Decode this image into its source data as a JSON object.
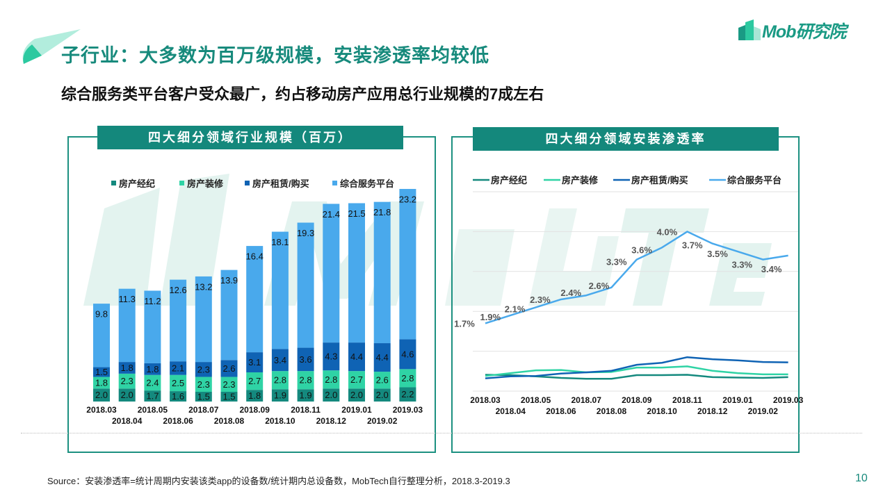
{
  "header": {
    "title": "子行业：大多数为百万级规模，安装渗透率均较低",
    "subtitle": "综合服务类平台客户受众最广，约占移动房产应用总行业规模的7成左右",
    "logo_text": "Mob研究院"
  },
  "watermark": "MobTech",
  "footer": {
    "source": "Source：安装渗透率=统计周期内安装该类app的设备数/统计期内总设备数，MobTech自行整理分析，2018.3-2019.3",
    "page_number": "10"
  },
  "colors": {
    "accent": "#14887c",
    "房产经纪": "#14897e",
    "房产装修": "#2fd3a5",
    "房产租赁/购买": "#0f63b4",
    "综合服务平台": "#49a9ec"
  },
  "chart_data": [
    {
      "type": "bar",
      "stacked": true,
      "title": "四大细分领域行业规模（百万）",
      "legend_position": "top",
      "grid": false,
      "categories": [
        "2018.03",
        "2018.04",
        "2018.05",
        "2018.06",
        "2018.07",
        "2018.08",
        "2018.09",
        "2018.10",
        "2018.11",
        "2018.12",
        "2019.01",
        "2019.02",
        "2019.03"
      ],
      "series": [
        {
          "name": "房产经纪",
          "values": [
            2.0,
            2.0,
            1.7,
            1.6,
            1.5,
            1.5,
            1.8,
            1.9,
            1.9,
            2.0,
            2.0,
            2.0,
            2.2
          ]
        },
        {
          "name": "房产装修",
          "values": [
            1.8,
            2.3,
            2.4,
            2.5,
            2.3,
            2.3,
            2.7,
            2.8,
            2.8,
            2.8,
            2.7,
            2.6,
            2.8
          ]
        },
        {
          "name": "房产租赁/购买",
          "values": [
            1.5,
            1.8,
            1.8,
            2.1,
            2.3,
            2.6,
            3.1,
            3.4,
            3.6,
            4.3,
            4.4,
            4.4,
            4.6
          ]
        },
        {
          "name": "综合服务平台",
          "values": [
            9.8,
            11.3,
            11.2,
            12.6,
            13.2,
            13.9,
            16.4,
            18.1,
            19.3,
            21.4,
            21.5,
            21.8,
            23.2
          ]
        }
      ]
    },
    {
      "type": "line",
      "title": "四大细分领域安装渗透率",
      "legend_position": "top",
      "grid": true,
      "ylim": [
        0,
        5
      ],
      "y_unit": "%",
      "categories": [
        "2018.03",
        "2018.04",
        "2018.05",
        "2018.06",
        "2018.07",
        "2018.08",
        "2018.09",
        "2018.10",
        "2018.11",
        "2018.12",
        "2019.01",
        "2019.02",
        "2019.03"
      ],
      "series": [
        {
          "name": "房产经纪",
          "values": [
            0.41,
            0.4,
            0.37,
            0.33,
            0.31,
            0.31,
            0.4,
            0.4,
            0.41,
            0.35,
            0.34,
            0.33,
            0.35
          ]
        },
        {
          "name": "房产装修",
          "values": [
            0.38,
            0.45,
            0.52,
            0.53,
            0.47,
            0.48,
            0.59,
            0.59,
            0.62,
            0.51,
            0.45,
            0.42,
            0.42
          ]
        },
        {
          "name": "房产租赁/购买",
          "values": [
            0.32,
            0.37,
            0.38,
            0.44,
            0.47,
            0.51,
            0.66,
            0.71,
            0.85,
            0.8,
            0.77,
            0.73,
            0.72
          ]
        },
        {
          "name": "综合服务平台",
          "values": [
            1.7,
            1.9,
            2.1,
            2.3,
            2.4,
            2.6,
            3.3,
            3.6,
            4.0,
            3.7,
            3.5,
            3.3,
            3.4
          ],
          "labels": [
            "1.7%",
            "1.9%",
            "2.1%",
            "2.3%",
            "2.4%",
            "2.6%",
            "3.3%",
            "3.6%",
            "4.0%",
            "3.7%",
            "3.5%",
            "3.3%",
            "3.4%"
          ]
        }
      ]
    }
  ]
}
